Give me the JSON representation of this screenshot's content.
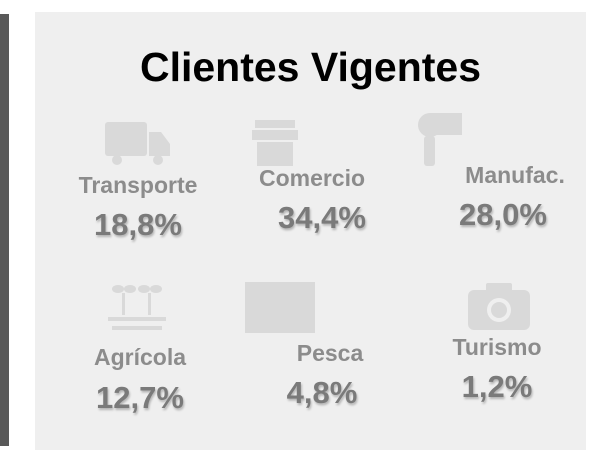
{
  "title": "Clientes Vigentes",
  "items": [
    {
      "label": "Transporte",
      "value": "18,8%"
    },
    {
      "label": "Comercio",
      "value": "34,4%"
    },
    {
      "label": "Manufac.",
      "value": "28,0%"
    },
    {
      "label": "Agrícola",
      "value": "12,7%"
    },
    {
      "label": "Pesca",
      "value": "4,8%"
    },
    {
      "label": "Turismo",
      "value": "1,2%"
    }
  ]
}
